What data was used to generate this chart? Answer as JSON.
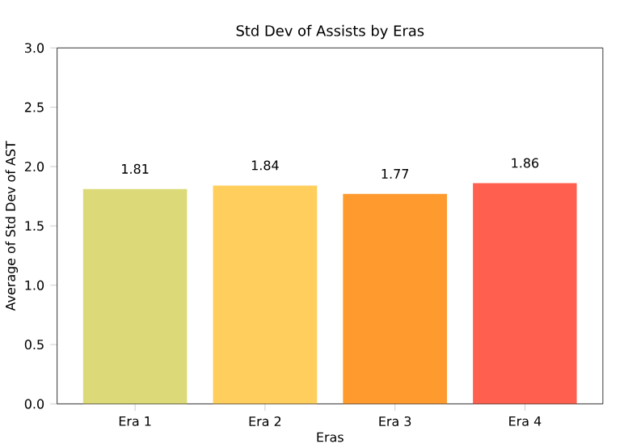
{
  "chart_data": {
    "type": "bar",
    "title": "Std Dev of Assists by Eras",
    "xlabel": "Eras",
    "ylabel": "Average of Std Dev of AST",
    "categories": [
      "Era 1",
      "Era 2",
      "Era 3",
      "Era 4"
    ],
    "values": [
      1.81,
      1.84,
      1.77,
      1.86
    ],
    "colors": [
      "#dcda78",
      "#ffce5c",
      "#ff9a2e",
      "#ff5f4e"
    ],
    "ylim": [
      0,
      3
    ],
    "yticks": [
      {
        "value": 0,
        "label": "0.0"
      },
      {
        "value": 0.5,
        "label": "0.5"
      },
      {
        "value": 1,
        "label": "1.0"
      },
      {
        "value": 1.5,
        "label": "1.5"
      },
      {
        "value": 2,
        "label": "2.0"
      },
      {
        "value": 2.5,
        "label": "2.5"
      },
      {
        "value": 3,
        "label": "3.0"
      }
    ],
    "data_labels": true
  }
}
